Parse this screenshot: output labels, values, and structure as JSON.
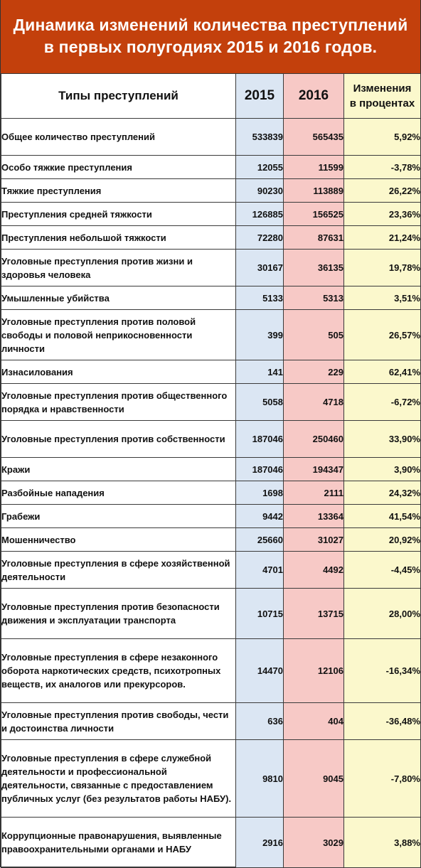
{
  "title": {
    "line1": "Динамика изменений количества преступлений",
    "line2": "в первых полугодиях 2015 и 2016 годов."
  },
  "colors": {
    "title_background": "#c3400c",
    "col_2015": "#dbe6f3",
    "col_2016": "#f7c9c6",
    "col_change": "#fbf8cc"
  },
  "chart_data": {
    "type": "table",
    "title": "Динамика изменений количества преступлений в первых полугодиях 2015 и 2016 годов.",
    "columns": [
      "Типы преступлений",
      "2015",
      "2016",
      "Изменения в процентах"
    ],
    "header": {
      "type": "Типы преступлений",
      "y2015": "2015",
      "y2016": "2016",
      "change_line1": "Изменения",
      "change_line2": "в процентах"
    },
    "rows": [
      {
        "type": "Общее количество преступлений",
        "y2015": "533839",
        "y2016": "565435",
        "change": "5,92%"
      },
      {
        "type": "Особо тяжкие преступления",
        "y2015": "12055",
        "y2016": "11599",
        "change": "-3,78%"
      },
      {
        "type": "Тяжкие преступления",
        "y2015": "90230",
        "y2016": "113889",
        "change": "26,22%"
      },
      {
        "type": "Преступления средней тяжкости",
        "y2015": "126885",
        "y2016": "156525",
        "change": "23,36%"
      },
      {
        "type": "Преступления небольшой тяжкости",
        "y2015": "72280",
        "y2016": "87631",
        "change": "21,24%"
      },
      {
        "type": "Уголовные преступления против жизни и здоровья человека",
        "y2015": "30167",
        "y2016": "36135",
        "change": "19,78%"
      },
      {
        "type": "Умышленные убийства",
        "y2015": "5133",
        "y2016": "5313",
        "change": "3,51%"
      },
      {
        "type": "Уголовные преступления против половой свободы и половой неприкосновенности личности",
        "y2015": "399",
        "y2016": "505",
        "change": "26,57%"
      },
      {
        "type": "Изнасилования",
        "y2015": "141",
        "y2016": "229",
        "change": "62,41%"
      },
      {
        "type": "Уголовные преступления против общественного порядка и нравственности",
        "y2015": "5058",
        "y2016": "4718",
        "change": "-6,72%"
      },
      {
        "type": "Уголовные преступления против собственности",
        "y2015": "187046",
        "y2016": "250460",
        "change": "33,90%"
      },
      {
        "type": "Кражи",
        "y2015": "187046",
        "y2016": "194347",
        "change": "3,90%"
      },
      {
        "type": "Разбойные нападения",
        "y2015": "1698",
        "y2016": "2111",
        "change": "24,32%"
      },
      {
        "type": "Грабежи",
        "y2015": "9442",
        "y2016": "13364",
        "change": "41,54%"
      },
      {
        "type": "Мошенничество",
        "y2015": "25660",
        "y2016": "31027",
        "change": "20,92%"
      },
      {
        "type": "Уголовные преступления в сфере хозяйственной деятельности",
        "y2015": "4701",
        "y2016": "4492",
        "change": "-4,45%"
      },
      {
        "type": "Уголовные преступления против безопасности движения и эксплуатации транспорта",
        "y2015": "10715",
        "y2016": "13715",
        "change": "28,00%"
      },
      {
        "type": "Уголовные преступления в сфере незаконного оборота наркотических средств, психотропных веществ, их аналогов или прекурсоров.",
        "y2015": "14470",
        "y2016": "12106",
        "change": "-16,34%"
      },
      {
        "type": "Уголовные преступления против свободы, чести и достоинства личности",
        "y2015": "636",
        "y2016": "404",
        "change": "-36,48%"
      },
      {
        "type": "Уголовные преступления в сфере служебной деятельности и профессиональной деятельности, связанные с предоставлением публичных услуг (без результатов работы НАБУ).",
        "y2015": "9810",
        "y2016": "9045",
        "change": "-7,80%"
      },
      {
        "type": "Коррупционные правонарушения, выявленные правоохранительными органами и НАБУ",
        "y2015": "2916",
        "y2016": "3029",
        "change": "3,88%"
      }
    ]
  }
}
